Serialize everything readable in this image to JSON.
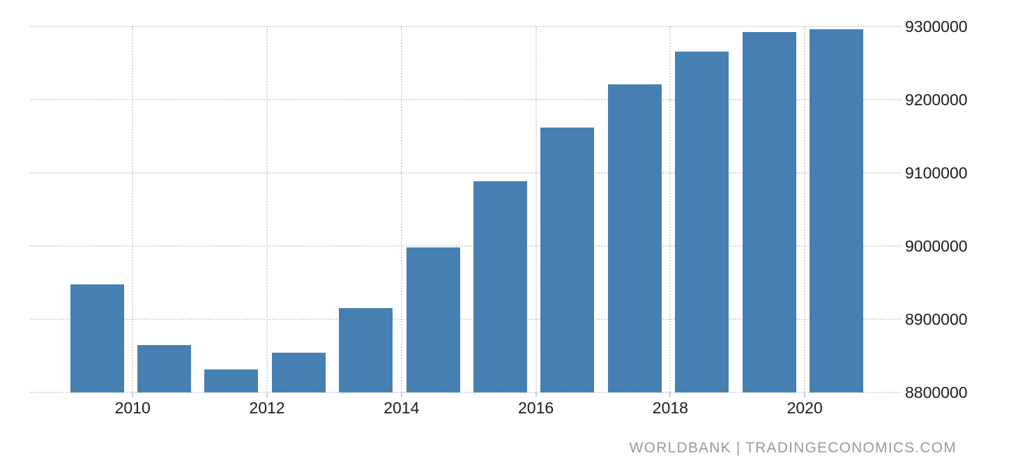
{
  "chart_data": {
    "type": "bar",
    "categories": [
      "2009",
      "2010",
      "2011",
      "2012",
      "2013",
      "2014",
      "2015",
      "2016",
      "2017",
      "2018",
      "2019",
      "2020"
    ],
    "values": [
      8948000,
      8865000,
      8831000,
      8854000,
      8915000,
      8998000,
      9089000,
      9162000,
      9221000,
      9266000,
      9292000,
      9296000
    ],
    "title": "",
    "xlabel": "",
    "ylabel": "",
    "ylim": [
      8800000,
      9300000
    ],
    "yticks": [
      8800000,
      8900000,
      9000000,
      9100000,
      9200000,
      9300000
    ],
    "xticks": [
      "2010",
      "2012",
      "2014",
      "2016",
      "2018",
      "2020"
    ],
    "grid": true,
    "legend": "none",
    "bar_color": "#4680B2",
    "gridline_color": "#d6d6d6",
    "axis_label_color": "#1c1c1c"
  },
  "watermark": {
    "text": "WORLDBANK | TRADINGECONOMICS.COM",
    "color": "#9a9a9a"
  }
}
